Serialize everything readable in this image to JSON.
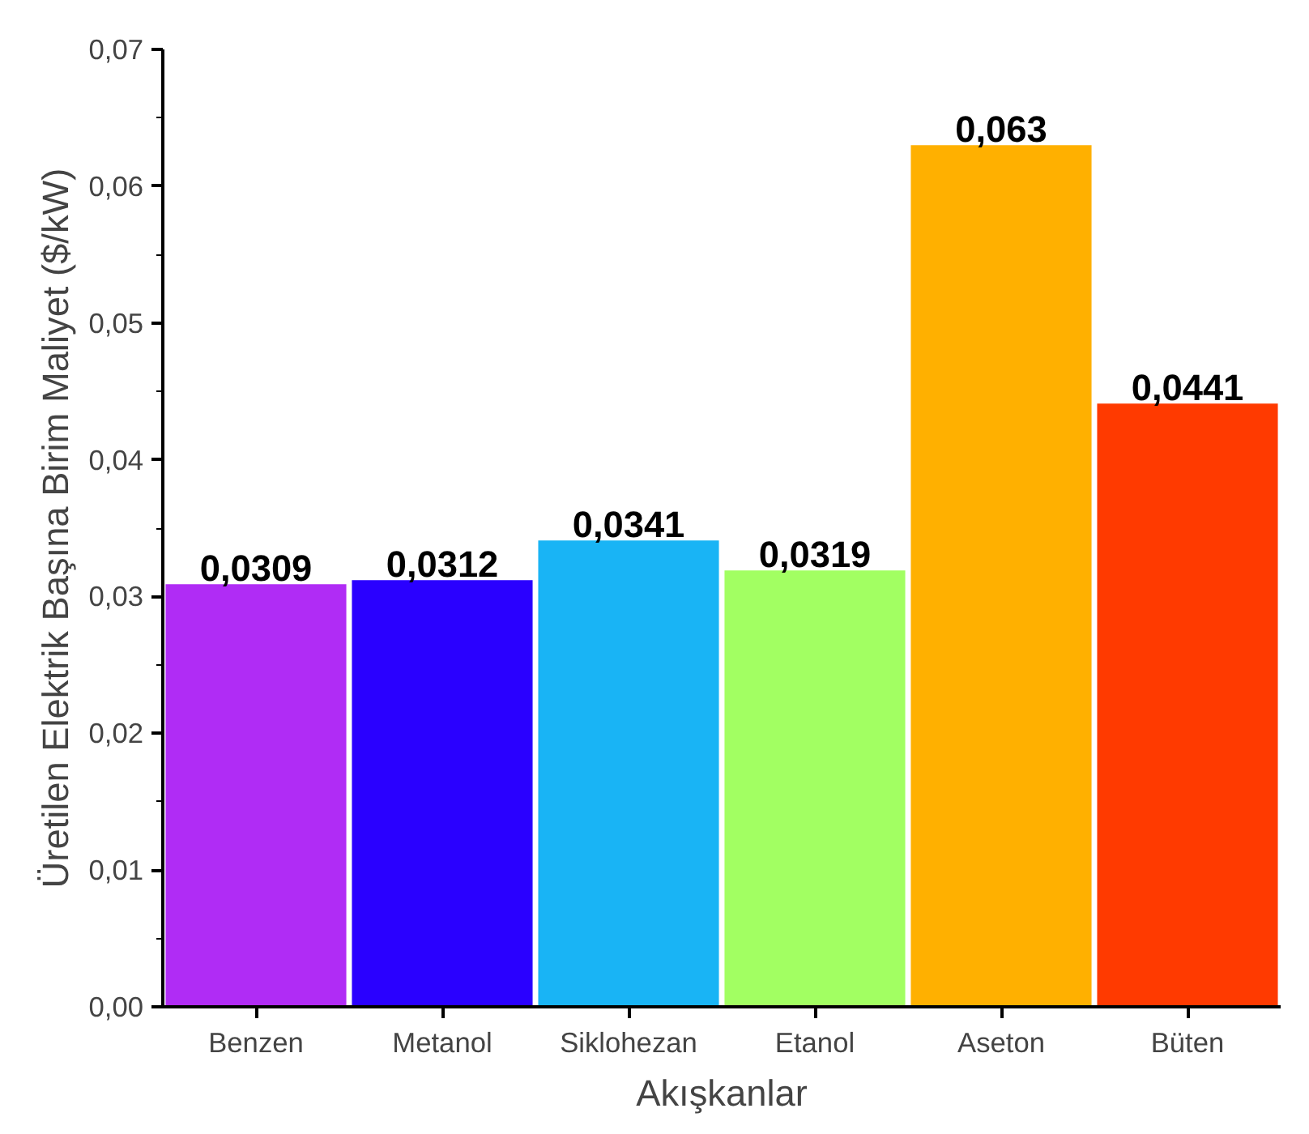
{
  "chart_data": {
    "type": "bar",
    "xlabel": "Akışkanlar",
    "ylabel": "Üretilen Elektrik Başına Birim Maliyet ($/kW)",
    "categories": [
      "Benzen",
      "Metanol",
      "Siklohezan",
      "Etanol",
      "Aseton",
      "Büten"
    ],
    "values": [
      0.0309,
      0.0312,
      0.0341,
      0.0319,
      0.063,
      0.0441
    ],
    "colors": [
      "#b02cf5",
      "#2a00ff",
      "#19b4f5",
      "#a2ff62",
      "#ffb000",
      "#ff3a00"
    ],
    "value_labels": [
      "0,0309",
      "0,0312",
      "0,0341",
      "0,0319",
      "0,063",
      "0,0441"
    ],
    "ylim": [
      0,
      0.07
    ],
    "yticks": [
      {
        "value": 0,
        "label": "0,00"
      },
      {
        "value": 0.01,
        "label": "0,01"
      },
      {
        "value": 0.02,
        "label": "0,02"
      },
      {
        "value": 0.03,
        "label": "0,03"
      },
      {
        "value": 0.04,
        "label": "0,04"
      },
      {
        "value": 0.05,
        "label": "0,05"
      },
      {
        "value": 0.06,
        "label": "0,06"
      },
      {
        "value": 0.07,
        "label": "0,07"
      }
    ],
    "grid": false
  }
}
